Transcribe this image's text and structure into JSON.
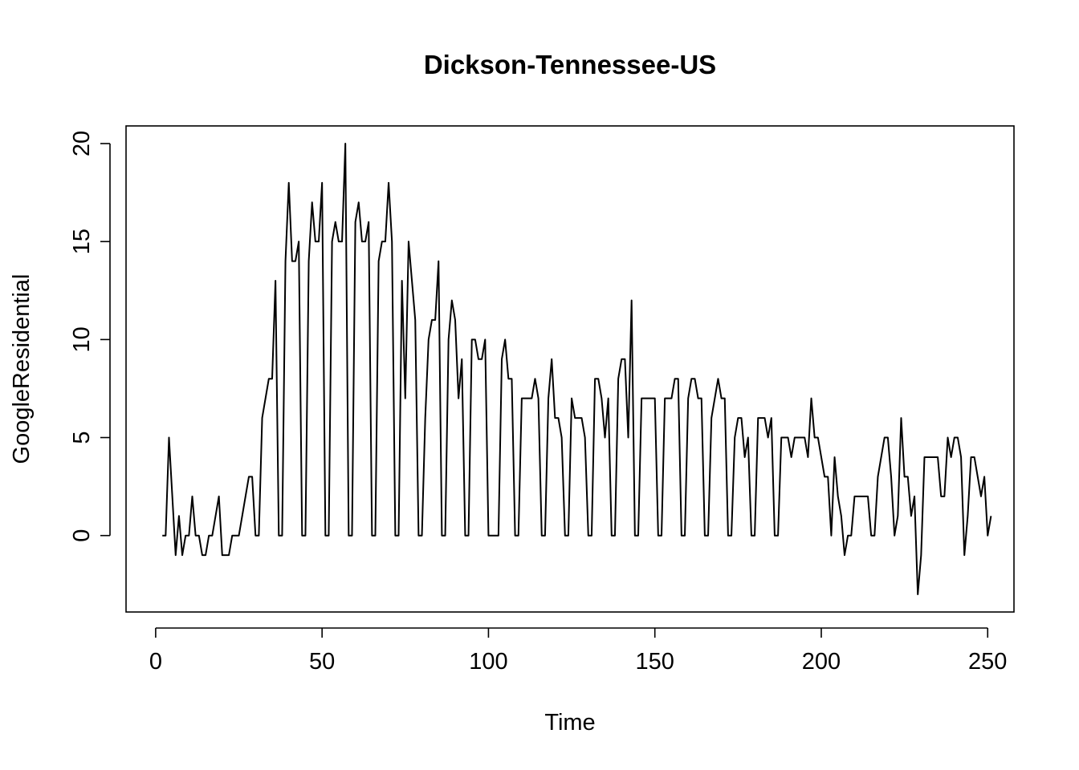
{
  "chart_data": {
    "type": "line",
    "title": "Dickson-Tennessee-US",
    "xlabel": "Time",
    "ylabel": "GoogleResidential",
    "xlim": [
      -8.9,
      257.9
    ],
    "ylim": [
      -3.9,
      20.9
    ],
    "xticks": [
      0,
      50,
      100,
      150,
      200,
      250
    ],
    "yticks": [
      0,
      5,
      10,
      15,
      20
    ],
    "xtick_labels": [
      "0",
      "50",
      "100",
      "150",
      "200",
      "250"
    ],
    "ytick_labels": [
      "0",
      "5",
      "10",
      "15",
      "20"
    ],
    "grid": false,
    "x_start": 2,
    "values": [
      0,
      0,
      5,
      2,
      -1,
      1,
      -1,
      0,
      0,
      2,
      0,
      0,
      -1,
      -1,
      0,
      0,
      1,
      2,
      -1,
      -1,
      -1,
      0,
      0,
      0,
      1,
      2,
      3,
      3,
      0,
      0,
      6,
      7,
      8,
      8,
      13,
      0,
      0,
      14,
      18,
      14,
      14,
      15,
      0,
      0,
      14,
      17,
      15,
      15,
      18,
      0,
      0,
      15,
      16,
      15,
      15,
      20,
      0,
      0,
      16,
      17,
      15,
      15,
      16,
      0,
      0,
      14,
      15,
      15,
      18,
      15,
      0,
      0,
      13,
      7,
      15,
      13,
      11,
      0,
      0,
      6,
      10,
      11,
      11,
      14,
      0,
      0,
      10,
      12,
      11,
      7,
      9,
      0,
      0,
      10,
      10,
      9,
      9,
      10,
      0,
      0,
      0,
      0,
      9,
      10,
      8,
      8,
      0,
      0,
      7,
      7,
      7,
      7,
      8,
      7,
      0,
      0,
      7,
      9,
      6,
      6,
      5,
      0,
      0,
      7,
      6,
      6,
      6,
      5,
      0,
      0,
      8,
      8,
      7,
      5,
      7,
      0,
      0,
      8,
      9,
      9,
      5,
      12,
      0,
      0,
      7,
      7,
      7,
      7,
      7,
      0,
      0,
      7,
      7,
      7,
      8,
      8,
      0,
      0,
      7,
      8,
      8,
      7,
      7,
      0,
      0,
      6,
      7,
      8,
      7,
      7,
      0,
      0,
      5,
      6,
      6,
      4,
      5,
      0,
      0,
      6,
      6,
      6,
      5,
      6,
      0,
      0,
      5,
      5,
      5,
      4,
      5,
      5,
      5,
      5,
      4,
      7,
      5,
      5,
      4,
      3,
      3,
      0,
      4,
      2,
      1,
      -1,
      0,
      0,
      2,
      2,
      2,
      2,
      2,
      0,
      0,
      3,
      4,
      5,
      5,
      3,
      0,
      1,
      6,
      3,
      3,
      1,
      2,
      -3,
      -1,
      4,
      4,
      4,
      4,
      4,
      2,
      2,
      5,
      4,
      5,
      5,
      4,
      -1,
      1,
      4,
      4,
      3,
      2,
      3,
      0,
      1
    ]
  }
}
